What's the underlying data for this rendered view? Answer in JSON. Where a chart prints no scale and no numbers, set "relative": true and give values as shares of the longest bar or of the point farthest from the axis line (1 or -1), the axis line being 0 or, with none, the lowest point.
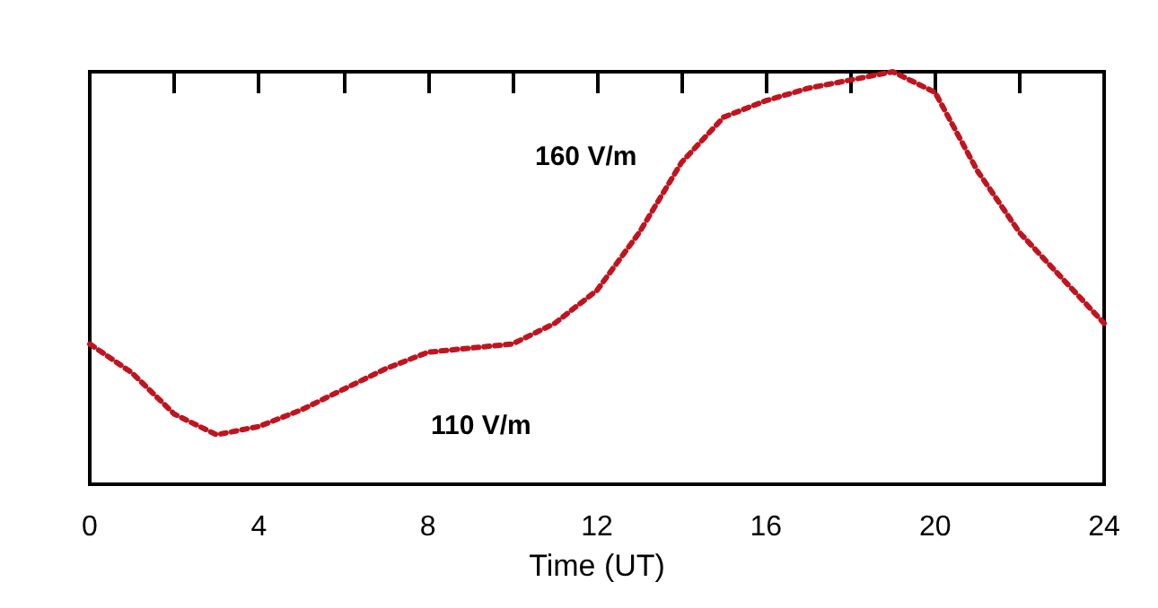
{
  "chart_data": {
    "type": "line",
    "xlabel": "Time (UT)",
    "relative": true,
    "annotations": [
      "160 V/m",
      "110 V/m"
    ],
    "x": [
      0,
      1,
      2,
      3,
      4,
      5,
      6,
      7,
      8,
      9,
      10,
      11,
      12,
      13,
      14,
      15,
      16,
      17,
      18,
      19,
      20,
      21,
      22,
      23,
      24
    ],
    "xlim": [
      0,
      24
    ],
    "xticks": [
      0,
      {
        "value": 2,
        "label": null
      },
      4,
      {
        "value": 6,
        "label": null
      },
      8,
      {
        "value": 10,
        "label": null
      },
      12,
      {
        "value": 14,
        "label": null
      },
      16,
      {
        "value": 18,
        "label": null
      },
      20,
      {
        "value": 22,
        "label": null
      },
      24
    ],
    "series": [
      {
        "color": "#c0141e",
        "values": [
          0.34,
          0.27,
          0.17,
          0.12,
          0.14,
          0.18,
          0.23,
          0.28,
          0.32,
          0.33,
          0.34,
          0.39,
          0.47,
          0.61,
          0.78,
          0.89,
          0.93,
          0.96,
          0.98,
          1,
          0.95,
          0.76,
          0.61,
          0.5,
          0.39
        ]
      }
    ],
    "marker": "none",
    "line_style": "dotted"
  }
}
